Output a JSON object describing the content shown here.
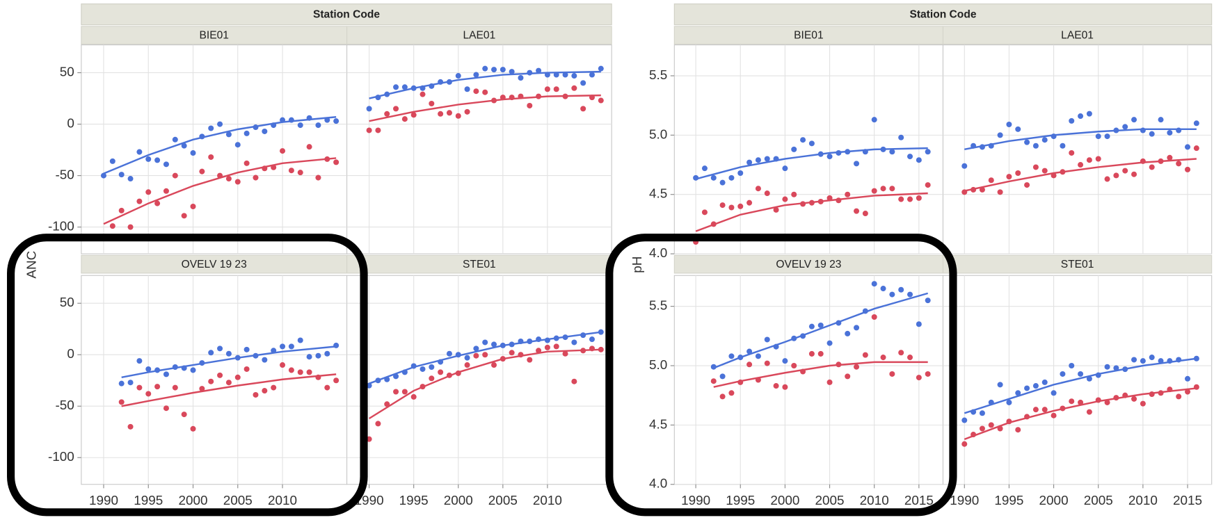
{
  "chart_data": [
    {
      "type": "scatter",
      "facet_title": "Station Code",
      "ylabel": "ANC",
      "x": [
        1990,
        1991,
        1992,
        1993,
        1994,
        1995,
        1996,
        1997,
        1998,
        1999,
        2000,
        2001,
        2002,
        2003,
        2004,
        2005,
        2006,
        2007,
        2008,
        2009,
        2010,
        2011,
        2012,
        2013,
        2014,
        2015,
        2016
      ],
      "xlim": [
        1987.5,
        2017.2
      ],
      "xticks": [
        1990,
        1995,
        2000,
        2005,
        2010
      ],
      "ylim": [
        -126,
        77
      ],
      "yticks": [
        -100,
        -50,
        0,
        50
      ],
      "grid": true,
      "panels": [
        {
          "title": "BIE01",
          "fit_x": [
            1990,
            1995,
            2000,
            2005,
            2010,
            2016
          ],
          "series": [
            {
              "color": "#4a72d8",
              "values": [
                -50,
                -36,
                -49,
                -53,
                -27,
                -34,
                -35,
                -39,
                -15,
                -21,
                -28,
                -12,
                -4,
                0,
                -10,
                -20,
                -9,
                -3,
                -7,
                -1,
                4,
                4,
                -1,
                6,
                -1,
                4,
                3
              ],
              "fit": [
                -48,
                -30,
                -15,
                -5,
                2,
                7
              ]
            },
            {
              "color": "#d9485b",
              "values": [
                null,
                -99,
                -84,
                -100,
                -75,
                -66,
                -77,
                -65,
                -50,
                -89,
                -80,
                -46,
                -32,
                -50,
                -53,
                -56,
                -38,
                -52,
                -43,
                -42,
                -26,
                -45,
                -47,
                -22,
                -52,
                -34,
                -37
              ],
              "fit": [
                -97,
                -77,
                -60,
                -47,
                -38,
                -33
              ]
            }
          ]
        },
        {
          "title": "LAE01",
          "fit_x": [
            1990,
            1995,
            2000,
            2005,
            2010,
            2016
          ],
          "series": [
            {
              "color": "#4a72d8",
              "values": [
                15,
                26,
                29,
                36,
                36,
                35,
                35,
                37,
                41,
                41,
                47,
                34,
                48,
                54,
                53,
                53,
                51,
                45,
                50,
                52,
                48,
                48,
                48,
                47,
                40,
                48,
                54
              ],
              "fit": [
                25,
                35,
                43,
                48,
                50,
                51
              ]
            },
            {
              "color": "#d9485b",
              "values": [
                -6,
                -6,
                10,
                15,
                5,
                9,
                29,
                20,
                10,
                11,
                8,
                12,
                32,
                31,
                23,
                26,
                26,
                27,
                18,
                27,
                34,
                34,
                27,
                35,
                15,
                26,
                23
              ],
              "fit": [
                3,
                12,
                19,
                24,
                27,
                28
              ]
            }
          ]
        },
        {
          "title": "OVELV 19 23",
          "fit_x": [
            1992,
            1995,
            2000,
            2005,
            2010,
            2016
          ],
          "series": [
            {
              "color": "#4a72d8",
              "values": [
                null,
                null,
                -28,
                -27,
                -6,
                -14,
                -15,
                -19,
                -12,
                -13,
                -15,
                -8,
                2,
                6,
                1,
                -3,
                5,
                -1,
                -5,
                4,
                8,
                8,
                14,
                -2,
                -1,
                1,
                9
              ],
              "fit": [
                -22,
                -17,
                -10,
                -3,
                3,
                8
              ]
            },
            {
              "color": "#d9485b",
              "values": [
                null,
                null,
                -46,
                -70,
                -32,
                -38,
                -31,
                -52,
                -32,
                -58,
                -72,
                -33,
                -26,
                -20,
                -27,
                -22,
                -14,
                -39,
                -35,
                -32,
                -10,
                -15,
                -17,
                -17,
                -22,
                -32,
                -25
              ],
              "fit": [
                -50,
                -45,
                -37,
                -30,
                -24,
                -19
              ]
            }
          ]
        },
        {
          "title": "STE01",
          "fit_x": [
            1990,
            1995,
            2000,
            2005,
            2010,
            2016
          ],
          "series": [
            {
              "color": "#4a72d8",
              "values": [
                -30,
                -25,
                -24,
                -21,
                -17,
                -11,
                -14,
                -12,
                -7,
                1,
                0,
                -3,
                6,
                12,
                10,
                9,
                10,
                13,
                13,
                15,
                14,
                16,
                17,
                12,
                19,
                15,
                22
              ],
              "fit": [
                -28,
                -12,
                -1,
                9,
                15,
                22
              ]
            },
            {
              "color": "#d9485b",
              "values": [
                -82,
                -67,
                -48,
                -36,
                -36,
                -41,
                -31,
                -23,
                -17,
                -20,
                -18,
                -10,
                -1,
                0,
                -10,
                -4,
                2,
                0,
                -5,
                4,
                7,
                8,
                1,
                -26,
                4,
                6,
                5
              ],
              "fit": [
                -62,
                -35,
                -17,
                -4,
                3,
                5
              ]
            }
          ]
        }
      ]
    },
    {
      "type": "scatter",
      "facet_title": "Station Code",
      "ylabel": "pH",
      "x": [
        1990,
        1991,
        1992,
        1993,
        1994,
        1995,
        1996,
        1997,
        1998,
        1999,
        2000,
        2001,
        2002,
        2003,
        2004,
        2005,
        2006,
        2007,
        2008,
        2009,
        2010,
        2011,
        2012,
        2013,
        2014,
        2015,
        2016
      ],
      "xlim": [
        1987.6,
        2017.7
      ],
      "xticks": [
        1990,
        1995,
        2000,
        2005,
        2010,
        2015
      ],
      "ylim": [
        4.0,
        5.76
      ],
      "yticks": [
        {
          "value": 4,
          "label": "4.0"
        },
        4.5,
        {
          "value": 5,
          "label": "5.0"
        },
        5.5
      ],
      "grid": true,
      "panels": [
        {
          "title": "BIE01",
          "fit_x": [
            1990,
            1995,
            2000,
            2005,
            2010,
            2016
          ],
          "series": [
            {
              "color": "#4a72d8",
              "values": [
                4.64,
                4.72,
                4.64,
                4.6,
                4.64,
                4.68,
                4.77,
                4.79,
                4.8,
                4.8,
                4.72,
                4.88,
                4.96,
                4.93,
                4.84,
                4.82,
                4.85,
                4.86,
                4.76,
                4.86,
                5.13,
                4.88,
                4.86,
                4.98,
                4.82,
                4.79,
                4.86
              ],
              "fit": [
                4.63,
                4.73,
                4.8,
                4.85,
                4.88,
                4.89
              ]
            },
            {
              "color": "#d9485b",
              "values": [
                4.1,
                4.35,
                4.25,
                4.41,
                4.39,
                4.4,
                4.43,
                4.55,
                4.51,
                4.37,
                4.46,
                4.5,
                4.42,
                4.43,
                4.44,
                4.47,
                4.45,
                4.5,
                4.36,
                4.34,
                4.53,
                4.55,
                4.55,
                4.46,
                4.46,
                4.47,
                4.58
              ],
              "fit": [
                4.19,
                4.33,
                4.41,
                4.45,
                4.49,
                4.51
              ]
            }
          ]
        },
        {
          "title": "LAE01",
          "fit_x": [
            1990,
            1995,
            2000,
            2005,
            2010,
            2016
          ],
          "series": [
            {
              "color": "#4a72d8",
              "values": [
                4.74,
                4.91,
                4.9,
                4.91,
                5.0,
                5.09,
                5.05,
                4.94,
                4.91,
                4.96,
                4.99,
                4.91,
                5.12,
                5.16,
                5.18,
                4.99,
                4.99,
                5.04,
                5.07,
                5.13,
                5.04,
                5.01,
                5.13,
                5.02,
                5.04,
                4.9,
                5.1
              ],
              "fit": [
                4.88,
                4.95,
                5.0,
                5.03,
                5.05,
                5.05
              ]
            },
            {
              "color": "#d9485b",
              "values": [
                4.52,
                4.54,
                4.54,
                4.62,
                4.52,
                4.65,
                4.68,
                4.58,
                4.73,
                4.7,
                4.66,
                4.69,
                4.85,
                4.75,
                4.79,
                4.8,
                4.63,
                4.66,
                4.7,
                4.67,
                4.78,
                4.73,
                4.78,
                4.81,
                4.76,
                4.71,
                4.89
              ],
              "fit": [
                4.53,
                4.61,
                4.68,
                4.73,
                4.77,
                4.8
              ]
            }
          ]
        },
        {
          "title": "OVELV 19 23",
          "fit_x": [
            1992,
            1995,
            2000,
            2005,
            2010,
            2016
          ],
          "series": [
            {
              "color": "#4a72d8",
              "values": [
                null,
                null,
                4.99,
                4.91,
                5.08,
                5.07,
                5.12,
                5.08,
                5.22,
                5.16,
                5.04,
                5.23,
                5.25,
                5.33,
                5.34,
                5.19,
                5.36,
                5.27,
                5.32,
                5.46,
                5.69,
                5.65,
                5.6,
                5.64,
                5.6,
                5.35,
                5.55
              ],
              "fit": [
                4.98,
                5.07,
                5.2,
                5.34,
                5.48,
                5.61
              ]
            },
            {
              "color": "#d9485b",
              "values": [
                null,
                null,
                4.87,
                4.74,
                4.77,
                4.86,
                5.01,
                4.88,
                5.02,
                4.83,
                4.82,
                5.0,
                4.95,
                5.1,
                5.1,
                4.86,
                5.01,
                4.91,
                4.99,
                5.09,
                5.41,
                5.07,
                4.93,
                5.11,
                5.07,
                4.9,
                4.93
              ],
              "fit": [
                4.82,
                4.87,
                4.94,
                5.0,
                5.03,
                5.03
              ]
            }
          ]
        },
        {
          "title": "STE01",
          "fit_x": [
            1990,
            1995,
            2000,
            2005,
            2010,
            2016
          ],
          "series": [
            {
              "color": "#4a72d8",
              "values": [
                4.54,
                4.61,
                4.6,
                4.69,
                4.84,
                4.69,
                4.77,
                4.81,
                4.83,
                4.86,
                4.77,
                4.93,
                5.0,
                4.93,
                4.89,
                4.92,
                4.99,
                4.98,
                4.97,
                5.05,
                5.04,
                5.07,
                5.04,
                5.04,
                5.05,
                4.89,
                5.06
              ],
              "fit": [
                4.6,
                4.72,
                4.84,
                4.93,
                5.0,
                5.06
              ]
            },
            {
              "color": "#d9485b",
              "values": [
                4.34,
                4.42,
                4.47,
                4.5,
                4.47,
                4.53,
                4.46,
                4.57,
                4.63,
                4.63,
                4.58,
                4.64,
                4.7,
                4.69,
                4.61,
                4.71,
                4.69,
                4.73,
                4.75,
                4.72,
                4.68,
                4.76,
                4.77,
                4.8,
                4.74,
                4.78,
                4.82
              ],
              "fit": [
                4.38,
                4.52,
                4.62,
                4.7,
                4.76,
                4.81
              ]
            }
          ]
        }
      ]
    }
  ]
}
